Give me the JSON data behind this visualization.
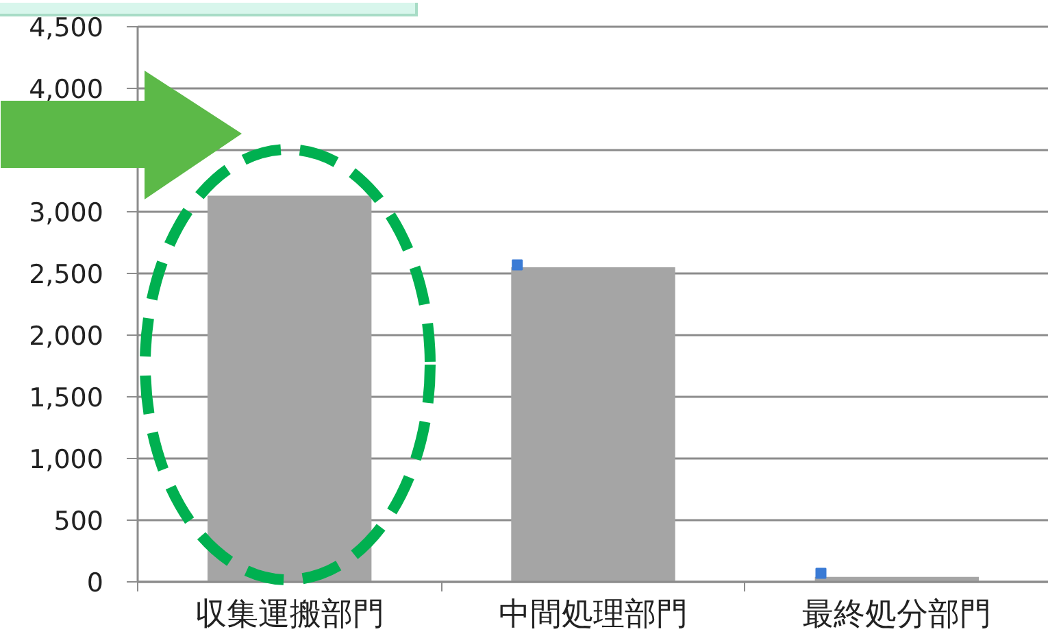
{
  "chart_data": {
    "type": "bar",
    "categories": [
      "収集運搬部門",
      "中間処理部門",
      "最終処分部門"
    ],
    "series": [
      {
        "color": "#a5a5a5",
        "values": [
          3130,
          2550,
          40
        ]
      },
      {
        "type": "scatter",
        "x": [
          "収集運搬部門",
          "中間処理部門",
          "最終処分部門"
        ],
        "color": "#3a7bd5",
        "values": [
          null,
          2570,
          70
        ]
      }
    ],
    "marker": "square",
    "ylim": [
      0,
      4500
    ],
    "yticks": [
      0,
      500,
      {
        "value": 1000,
        "label": "1,000"
      },
      {
        "value": 1500,
        "label": "1,500"
      },
      {
        "value": 2000,
        "label": "2,000"
      },
      {
        "value": 2500,
        "label": "2,500"
      },
      {
        "value": 3000,
        "label": "3,000"
      },
      {
        "value": 3500,
        "label": null
      },
      {
        "value": 4000,
        "label": "4,000"
      },
      {
        "value": 4500,
        "label": "4,500"
      }
    ],
    "grid": "y"
  }
}
